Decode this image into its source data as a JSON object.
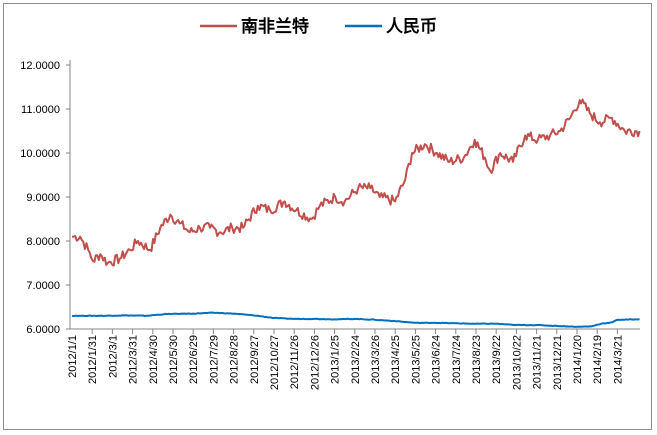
{
  "chart_data": {
    "type": "line",
    "title": "",
    "xlabel": "",
    "ylabel": "",
    "ylim": [
      6.0,
      12.0
    ],
    "y_ticks": [
      "6.0000",
      "7.0000",
      "8.0000",
      "9.0000",
      "10.0000",
      "11.0000",
      "12.0000"
    ],
    "x_tick_labels": [
      "2012/1/1",
      "2012/1/31",
      "2012/3/1",
      "2012/3/31",
      "2012/4/30",
      "2012/5/30",
      "2012/6/29",
      "2012/7/29",
      "2012/8/28",
      "2012/9/27",
      "2012/10/27",
      "2012/11/26",
      "2012/12/26",
      "2013/1/25",
      "2013/2/24",
      "2013/3/26",
      "2013/4/25",
      "2013/5/25",
      "2013/6/24",
      "2013/7/24",
      "2013/8/23",
      "2013/9/22",
      "2013/10/22",
      "2013/11/21",
      "2013/12/21",
      "2014/1/20",
      "2014/2/19",
      "2014/3/21"
    ],
    "x_range": [
      "2012/1/1",
      "2014/4/23"
    ],
    "grid": false,
    "legend_position": "top",
    "series": [
      {
        "name": "南非兰特",
        "color": "#c0504d",
        "points": [
          [
            "2012/1/1",
            8.1
          ],
          [
            "2012/1/13",
            8.1
          ],
          [
            "2012/1/25",
            7.8
          ],
          [
            "2012/2/1",
            7.55
          ],
          [
            "2012/2/12",
            7.7
          ],
          [
            "2012/2/23",
            7.5
          ],
          [
            "2012/3/12",
            7.6
          ],
          [
            "2012/3/27",
            7.8
          ],
          [
            "2012/4/8",
            8.0
          ],
          [
            "2012/4/26",
            7.8
          ],
          [
            "2012/5/11",
            8.3
          ],
          [
            "2012/5/26",
            8.6
          ],
          [
            "2012/6/9",
            8.4
          ],
          [
            "2012/6/24",
            8.2
          ],
          [
            "2012/7/9",
            8.3
          ],
          [
            "2012/7/24",
            8.3
          ],
          [
            "2012/8/8",
            8.2
          ],
          [
            "2012/8/26",
            8.3
          ],
          [
            "2012/9/11",
            8.3
          ],
          [
            "2012/10/3",
            8.8
          ],
          [
            "2012/10/21",
            8.7
          ],
          [
            "2012/11/12",
            8.9
          ],
          [
            "2012/11/29",
            8.7
          ],
          [
            "2012/12/22",
            8.5
          ],
          [
            "2013/1/3",
            8.8
          ],
          [
            "2013/1/26",
            9.0
          ],
          [
            "2013/2/9",
            8.9
          ],
          [
            "2013/3/1",
            9.2
          ],
          [
            "2013/3/19",
            9.2
          ],
          [
            "2013/4/2",
            9.0
          ],
          [
            "2013/4/25",
            8.9
          ],
          [
            "2013/5/10",
            9.4
          ],
          [
            "2013/5/20",
            10.0
          ],
          [
            "2013/6/8",
            10.2
          ],
          [
            "2013/6/26",
            10.0
          ],
          [
            "2013/7/15",
            9.8
          ],
          [
            "2013/8/5",
            9.9
          ],
          [
            "2013/8/21",
            10.3
          ],
          [
            "2013/9/5",
            9.9
          ],
          [
            "2013/9/13",
            9.6
          ],
          [
            "2013/9/28",
            10.0
          ],
          [
            "2013/10/17",
            9.8
          ],
          [
            "2013/11/4",
            10.4
          ],
          [
            "2013/11/23",
            10.3
          ],
          [
            "2013/12/11",
            10.4
          ],
          [
            "2013/12/26",
            10.5
          ],
          [
            "2014/1/10",
            10.8
          ],
          [
            "2014/1/24",
            11.2
          ],
          [
            "2014/2/8",
            10.9
          ],
          [
            "2014/2/23",
            10.7
          ],
          [
            "2014/3/13",
            10.8
          ],
          [
            "2014/4/1",
            10.5
          ],
          [
            "2014/4/23",
            10.5
          ]
        ]
      },
      {
        "name": "人民币",
        "color": "#0070c0",
        "points": [
          [
            "2012/1/1",
            6.3
          ],
          [
            "2012/2/15",
            6.3
          ],
          [
            "2012/3/20",
            6.31
          ],
          [
            "2012/4/20",
            6.3
          ],
          [
            "2012/5/20",
            6.34
          ],
          [
            "2012/6/29",
            6.35
          ],
          [
            "2012/7/29",
            6.37
          ],
          [
            "2012/8/28",
            6.35
          ],
          [
            "2012/9/27",
            6.31
          ],
          [
            "2012/10/27",
            6.25
          ],
          [
            "2012/11/26",
            6.23
          ],
          [
            "2012/12/26",
            6.23
          ],
          [
            "2013/1/25",
            6.22
          ],
          [
            "2013/2/24",
            6.23
          ],
          [
            "2013/3/26",
            6.21
          ],
          [
            "2013/4/25",
            6.18
          ],
          [
            "2013/5/25",
            6.14
          ],
          [
            "2013/6/24",
            6.14
          ],
          [
            "2013/7/24",
            6.13
          ],
          [
            "2013/8/23",
            6.12
          ],
          [
            "2013/9/22",
            6.12
          ],
          [
            "2013/10/22",
            6.09
          ],
          [
            "2013/11/21",
            6.09
          ],
          [
            "2013/12/21",
            6.07
          ],
          [
            "2014/1/20",
            6.05
          ],
          [
            "2014/2/10",
            6.06
          ],
          [
            "2014/2/25",
            6.12
          ],
          [
            "2014/3/13",
            6.15
          ],
          [
            "2014/3/21",
            6.21
          ],
          [
            "2014/4/23",
            6.22
          ]
        ]
      }
    ]
  }
}
